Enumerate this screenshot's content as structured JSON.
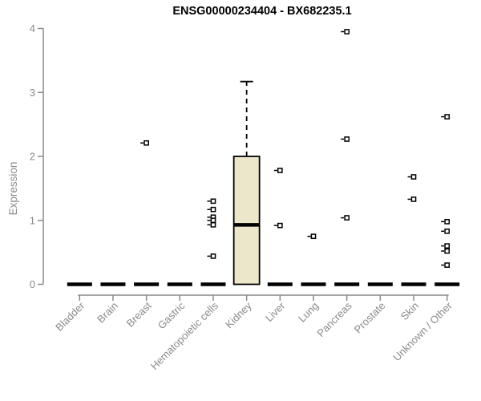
{
  "chart_data": {
    "type": "boxplot",
    "title": "ENSG00000234404 - BX682235.1",
    "ylabel": "Expression",
    "xlabel": "",
    "ylim": [
      0,
      4
    ],
    "yticks": [
      0,
      1,
      2,
      3,
      4
    ],
    "grid": false,
    "legend": "none",
    "x_tick_rotation": 45,
    "categories": [
      "Bladder",
      "Brain",
      "Breast",
      "Gastric",
      "Hematopoietic cells",
      "Kidney",
      "Liver",
      "Lung",
      "Pancreas",
      "Prostate",
      "Skin",
      "Unknown / Other"
    ],
    "boxes": [
      {
        "category": "Bladder",
        "q1": 0,
        "median": 0,
        "q3": 0,
        "whisker_low": 0,
        "whisker_high": 0,
        "outliers": []
      },
      {
        "category": "Brain",
        "q1": 0,
        "median": 0,
        "q3": 0,
        "whisker_low": 0,
        "whisker_high": 0,
        "outliers": []
      },
      {
        "category": "Breast",
        "q1": 0,
        "median": 0,
        "q3": 0,
        "whisker_low": 0,
        "whisker_high": 0,
        "outliers": [
          2.21
        ]
      },
      {
        "category": "Gastric",
        "q1": 0,
        "median": 0,
        "q3": 0,
        "whisker_low": 0,
        "whisker_high": 0,
        "outliers": []
      },
      {
        "category": "Hematopoietic cells",
        "q1": 0,
        "median": 0,
        "q3": 0,
        "whisker_low": 0,
        "whisker_high": 0,
        "outliers": [
          1.3,
          1.17,
          1.05,
          1.0,
          0.93,
          0.44
        ]
      },
      {
        "category": "Kidney",
        "q1": 0,
        "median": 0.93,
        "q3": 2.0,
        "whisker_low": 0,
        "whisker_high": 3.17,
        "outliers": []
      },
      {
        "category": "Liver",
        "q1": 0,
        "median": 0,
        "q3": 0,
        "whisker_low": 0,
        "whisker_high": 0,
        "outliers": [
          1.78,
          0.92
        ]
      },
      {
        "category": "Lung",
        "q1": 0,
        "median": 0,
        "q3": 0,
        "whisker_low": 0,
        "whisker_high": 0,
        "outliers": [
          0.75
        ]
      },
      {
        "category": "Pancreas",
        "q1": 0,
        "median": 0,
        "q3": 0,
        "whisker_low": 0,
        "whisker_high": 0,
        "outliers": [
          3.95,
          2.27,
          1.04
        ]
      },
      {
        "category": "Prostate",
        "q1": 0,
        "median": 0,
        "q3": 0,
        "whisker_low": 0,
        "whisker_high": 0,
        "outliers": []
      },
      {
        "category": "Skin",
        "q1": 0,
        "median": 0,
        "q3": 0,
        "whisker_low": 0,
        "whisker_high": 0,
        "outliers": [
          1.68,
          1.33
        ]
      },
      {
        "category": "Unknown / Other",
        "q1": 0,
        "median": 0,
        "q3": 0,
        "whisker_low": 0,
        "whisker_high": 0,
        "outliers": [
          2.62,
          0.98,
          0.83,
          0.6,
          0.52,
          0.3
        ]
      }
    ],
    "colors": {
      "background": "#ffffff",
      "box_fill": "#ece7cb",
      "box_border": "#000000",
      "median": "#000000",
      "outlier": "#000000",
      "axis": "#8a8a8a",
      "tick_label": "#8a8a8a",
      "title": "#000000"
    }
  }
}
